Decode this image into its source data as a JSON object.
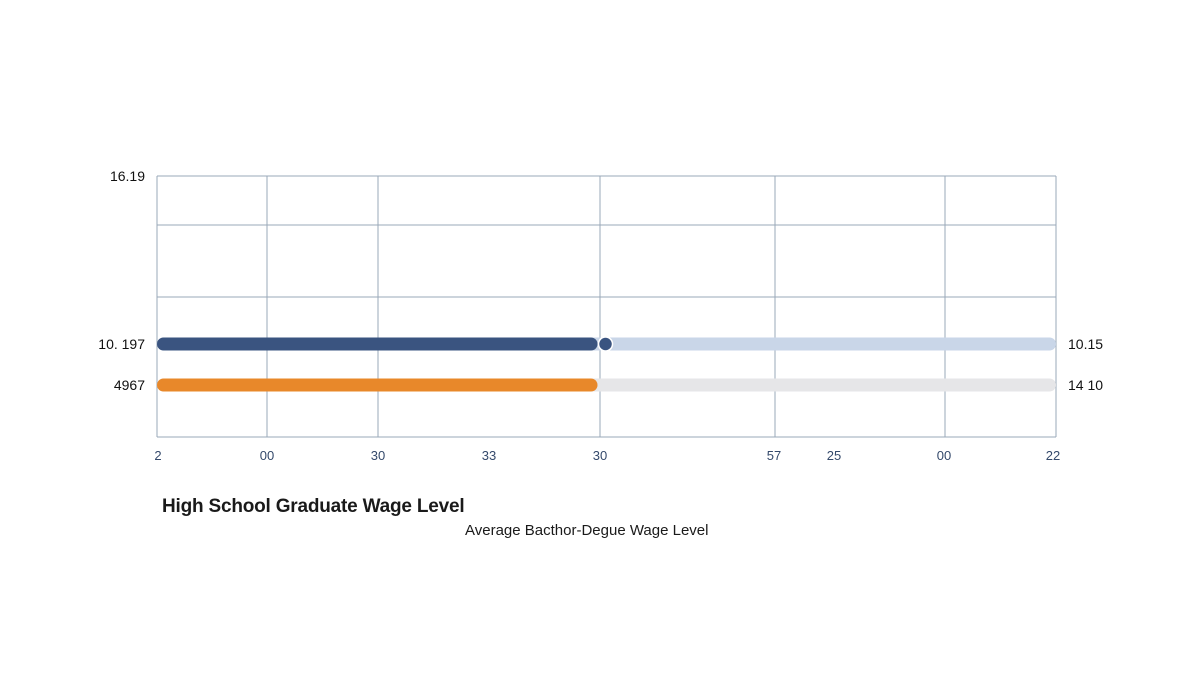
{
  "chart_data": {
    "type": "bar",
    "orientation": "horizontal",
    "y_top_label": "16.19",
    "x_tick_labels": [
      "2",
      "00",
      "30",
      "33",
      "30",
      "57",
      "25",
      "00",
      "22"
    ],
    "series": [
      {
        "left_label": "10. 197",
        "right_label": "10.15",
        "fill_fraction": 0.49,
        "fill_color": "#3a5480",
        "track_color": "#c9d6e8",
        "marker": true
      },
      {
        "left_label": "4967",
        "right_label": "14 10",
        "fill_fraction": 0.49,
        "fill_color": "#e8882a",
        "track_color": "#e6e6e8",
        "marker": false
      }
    ],
    "grid": true
  },
  "legend": {
    "primary": "High School Graduate Wage Level",
    "secondary": "Average Bacthor-Degue Wage Level"
  },
  "colors": {
    "grid": "#9aa8b8",
    "tick_text": "#34496b",
    "label_text": "#111111"
  }
}
